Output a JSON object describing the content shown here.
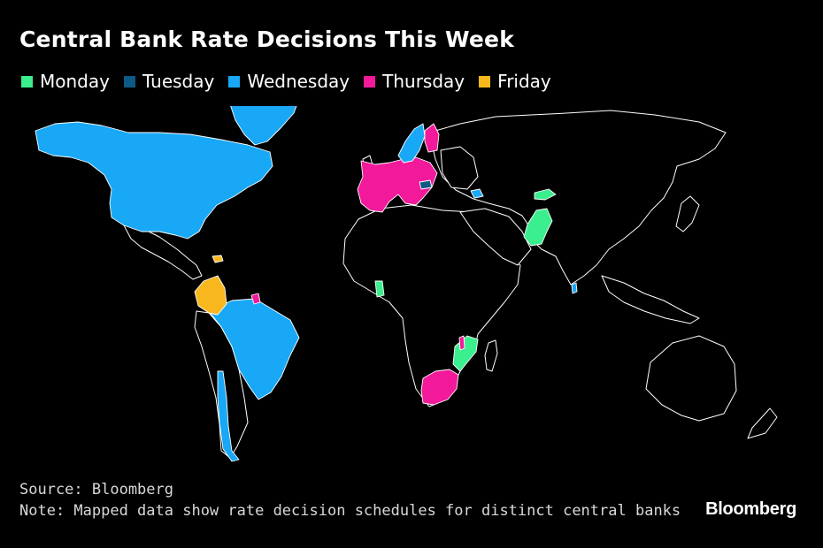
{
  "title": "Central Bank Rate Decisions This Week",
  "legend": [
    {
      "label": "Monday",
      "color": "#3bef8e"
    },
    {
      "label": "Tuesday",
      "color": "#0e5a86"
    },
    {
      "label": "Wednesday",
      "color": "#19a8f5"
    },
    {
      "label": "Thursday",
      "color": "#f2199a"
    },
    {
      "label": "Friday",
      "color": "#f8b81d"
    }
  ],
  "colors": {
    "background": "#000000",
    "border": "#ffffff",
    "unshaded": "#000000"
  },
  "regions": {
    "north_america": "Wednesday",
    "greenland": "Wednesday",
    "brazil": "Wednesday",
    "chile": "Wednesday",
    "colombia": "Friday",
    "dominican_republic": "Friday",
    "guyana": "Thursday",
    "eurozone": "Thursday",
    "norway": "Wednesday",
    "sweden": "Wednesday",
    "finland": "Thursday",
    "hungary": "Tuesday",
    "georgia": "Wednesday",
    "pakistan": "Monday",
    "kyrgyzstan": "Monday",
    "sri_lanka": "Wednesday",
    "ghana": "Monday",
    "mozambique": "Monday",
    "malawi": "Thursday",
    "south_africa": "Thursday"
  },
  "footer": {
    "source": "Source: Bloomberg",
    "note": "Note: Mapped data show rate decision schedules for distinct central banks",
    "brand": "Bloomberg"
  }
}
